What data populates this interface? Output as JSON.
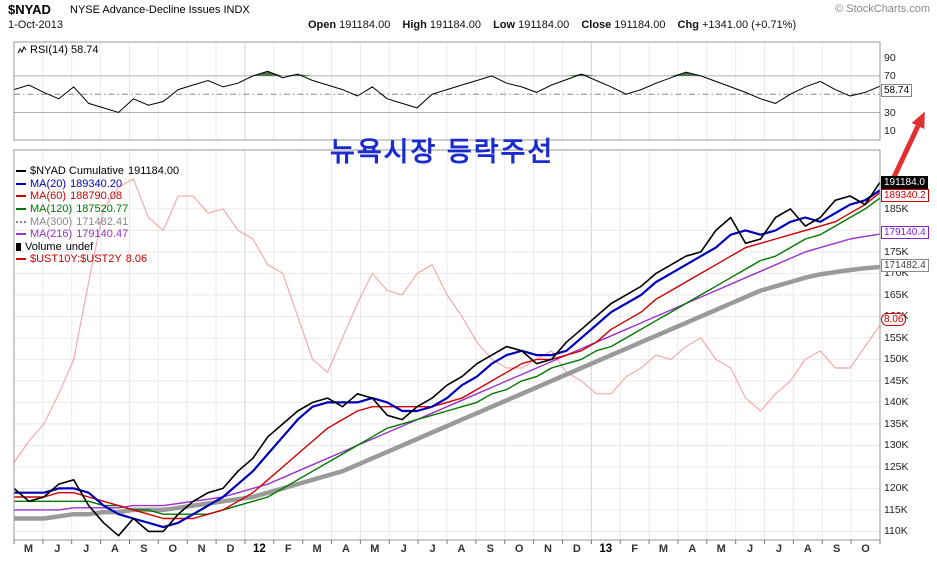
{
  "header": {
    "symbol": "$NYAD",
    "title": "NYSE Advance-Decline Issues  INDX",
    "copyright": "© StockCharts.com",
    "date": "1-Oct-2013",
    "ohlc": [
      {
        "label": "Open",
        "value": "191184.00"
      },
      {
        "label": "High",
        "value": "191184.00"
      },
      {
        "label": "Low",
        "value": "191184.00"
      },
      {
        "label": "Close",
        "value": "191184.00"
      },
      {
        "label": "Chg",
        "value": "+1341.00 (+0.71%)"
      }
    ]
  },
  "rsi_panel": {
    "label": "RSI(14) 58.74",
    "badge": "58.74"
  },
  "annotation": {
    "text": "뉴욕시장 등락주선",
    "color": "#1a2bd0"
  },
  "legend": [
    {
      "label": "$NYAD  Cumulative",
      "value": "191184.00",
      "color": "#000000"
    },
    {
      "label": "MA(20)",
      "value": "189340.20",
      "color": "#0000bb"
    },
    {
      "label": "MA(60)",
      "value": "188790.08",
      "color": "#cc0000"
    },
    {
      "label": "MA(120)",
      "value": "187520.77",
      "color": "#007700"
    },
    {
      "label": "MA(300)",
      "value": "171482.41",
      "color": "#888888"
    },
    {
      "label": "MA(216)",
      "value": "179140.47",
      "color": "#9933cc"
    },
    {
      "label": "Volume",
      "value": "undef",
      "color": "#000000"
    },
    {
      "label": "$UST10Y:$UST2Y",
      "value": "8.06",
      "color": "#cc0000"
    }
  ],
  "badges": [
    {
      "text": "58.74",
      "fg": "#000000",
      "bd": "#888888",
      "bg": "#ffffff",
      "shape": "rect"
    },
    {
      "text": "191184.0",
      "fg": "#ffffff",
      "bd": "#000000",
      "bg": "#000000",
      "shape": "rect"
    },
    {
      "text": "189340.2",
      "fg": "#cc0000",
      "bd": "#cc0000",
      "bg": "#ffffff",
      "shape": "rect"
    },
    {
      "text": "179140.4",
      "fg": "#8822cc",
      "bd": "#8822cc",
      "bg": "#ffffff",
      "shape": "rect"
    },
    {
      "text": "171482.4",
      "fg": "#444444",
      "bd": "#888888",
      "bg": "#ffffff",
      "shape": "rect"
    },
    {
      "text": "8.06",
      "fg": "#cc0000",
      "bd": "#cc0000",
      "bg": "#ffffff",
      "shape": "oval"
    }
  ],
  "chart_data": [
    {
      "type": "line",
      "panel": "indicator",
      "title": "RSI(14)",
      "last": 58.74,
      "ylim": [
        0,
        107
      ],
      "yticks": [
        90,
        70,
        50,
        30,
        10
      ],
      "overbought": 70,
      "oversold": 30,
      "series": [
        {
          "name": "RSI(14)",
          "color": "#000000",
          "width": 1,
          "values": [
            55,
            60,
            52,
            45,
            58,
            40,
            35,
            30,
            45,
            38,
            42,
            55,
            60,
            65,
            58,
            62,
            70,
            75,
            68,
            72,
            65,
            60,
            55,
            48,
            58,
            45,
            40,
            35,
            50,
            55,
            60,
            65,
            70,
            62,
            58,
            52,
            60,
            66,
            72,
            65,
            58,
            50,
            55,
            62,
            68,
            74,
            70,
            64,
            58,
            52,
            45,
            40,
            50,
            58,
            64,
            55,
            48,
            52,
            58.74
          ]
        }
      ]
    },
    {
      "type": "line",
      "panel": "main",
      "title": "$NYAD Cumulative",
      "units": "thousands",
      "ylim_thousands": [
        108,
        198.7
      ],
      "yticks_thousands": [
        110,
        115,
        120,
        125,
        130,
        135,
        140,
        145,
        150,
        155,
        160,
        165,
        170,
        175,
        180,
        185
      ],
      "x_labels": [
        "M",
        "J",
        "J",
        "A",
        "S",
        "O",
        "N",
        "D",
        "12",
        "F",
        "M",
        "A",
        "M",
        "J",
        "J",
        "A",
        "S",
        "O",
        "N",
        "D",
        "13",
        "F",
        "M",
        "A",
        "M",
        "J",
        "J",
        "A",
        "S",
        "O"
      ],
      "series": [
        {
          "name": "$NYAD Cumulative",
          "color": "#000000",
          "width": 1.6,
          "last": 191184.0,
          "values": [
            120,
            117,
            118,
            121,
            122,
            116,
            112,
            109,
            113,
            110,
            110,
            114,
            117,
            119,
            120,
            124,
            127,
            132,
            135,
            138,
            140,
            141,
            139,
            142,
            141,
            137,
            136,
            139,
            141,
            144,
            146,
            149,
            151,
            153,
            152,
            149,
            150,
            154,
            157,
            160,
            163,
            165,
            167,
            170,
            172,
            174,
            175,
            180,
            183,
            177,
            178,
            183,
            185,
            181,
            183,
            187,
            188,
            186,
            191.18
          ]
        },
        {
          "name": "MA(20)",
          "color": "#0000bb",
          "width": 2.2,
          "last": 189340.2,
          "values": [
            119,
            119,
            119,
            120,
            120,
            119,
            116,
            114,
            113,
            112,
            111,
            112,
            114,
            116,
            118,
            121,
            124,
            128,
            132,
            136,
            139,
            140,
            140,
            140,
            141,
            140,
            138,
            138,
            139,
            141,
            144,
            146,
            149,
            151,
            152,
            151,
            151,
            152,
            155,
            158,
            161,
            163,
            165,
            168,
            170,
            172,
            174,
            176,
            179,
            180,
            179,
            180,
            182,
            183,
            182,
            184,
            186,
            187,
            189.34
          ]
        },
        {
          "name": "MA(60)",
          "color": "#cc0000",
          "width": 1.4,
          "last": 188790.08,
          "values": [
            118,
            118,
            118,
            119,
            119,
            118,
            117,
            116,
            115,
            114,
            113,
            113,
            113,
            114,
            115,
            117,
            119,
            122,
            125,
            128,
            131,
            134,
            136,
            138,
            139,
            139,
            139,
            139,
            139,
            140,
            141,
            143,
            145,
            147,
            149,
            150,
            150,
            151,
            152,
            154,
            157,
            159,
            161,
            164,
            166,
            168,
            170,
            172,
            174,
            176,
            177,
            178,
            179,
            180,
            181,
            182,
            184,
            186,
            188.79
          ]
        },
        {
          "name": "MA(120)",
          "color": "#007700",
          "width": 1.4,
          "last": 187520.77,
          "values": [
            117,
            117,
            117,
            117,
            117,
            117,
            116,
            116,
            115,
            115,
            114,
            114,
            114,
            114,
            115,
            116,
            117,
            118,
            120,
            122,
            124,
            126,
            128,
            130,
            132,
            134,
            135,
            136,
            137,
            138,
            139,
            140,
            142,
            143,
            145,
            146,
            148,
            149,
            150,
            152,
            153,
            155,
            157,
            159,
            161,
            163,
            165,
            167,
            169,
            171,
            173,
            174,
            176,
            178,
            179,
            181,
            183,
            185,
            187.52
          ]
        },
        {
          "name": "MA(300)",
          "color": "#9a9a9a",
          "width": 4.5,
          "last": 171482.41,
          "values": [
            113,
            113,
            113,
            113.5,
            114,
            114,
            114.5,
            114.5,
            115,
            115,
            115,
            115.5,
            116,
            116.5,
            117,
            117.5,
            118,
            119,
            120,
            121,
            122,
            123,
            124,
            125.5,
            127,
            128.5,
            130,
            131.5,
            133,
            134.5,
            136,
            137.5,
            139,
            140.5,
            142,
            143.5,
            145,
            146.5,
            148,
            149.5,
            151,
            152.5,
            154,
            155.5,
            157,
            158.5,
            160,
            161.5,
            163,
            164.5,
            166,
            167,
            168,
            169,
            169.8,
            170.3,
            170.8,
            171.2,
            171.48
          ]
        },
        {
          "name": "MA(216)",
          "color": "#9933cc",
          "width": 1.4,
          "last": 179140.47,
          "values": [
            115,
            115,
            115,
            115,
            115.5,
            115.5,
            115.5,
            115.5,
            116,
            116,
            116,
            116.5,
            117,
            117.5,
            118,
            119,
            120,
            121,
            122.5,
            124,
            125.5,
            127,
            128.5,
            130,
            131.5,
            133,
            134.5,
            136,
            137.5,
            139,
            140.5,
            142,
            143.5,
            145,
            146.5,
            148,
            149.5,
            151,
            152.5,
            154,
            155.5,
            157,
            158.5,
            160,
            161.5,
            163,
            164.5,
            166,
            167.5,
            169,
            170.5,
            172,
            173.5,
            175,
            176,
            177,
            178,
            178.6,
            179.14
          ]
        },
        {
          "name": "$UST10Y:$UST2Y",
          "color": "#f2a3a3",
          "width": 1.2,
          "opacity": 0.9,
          "last": 8.06,
          "values": [
            126,
            131,
            135,
            142,
            150,
            168,
            185,
            190,
            192,
            183,
            180,
            188,
            188,
            184,
            185,
            180,
            178,
            172,
            170,
            160,
            150,
            147,
            155,
            163,
            170,
            166,
            165,
            170,
            172,
            165,
            160,
            154,
            150,
            148,
            148,
            150,
            152,
            147,
            145,
            142,
            142,
            146,
            148,
            151,
            150,
            153,
            155,
            150,
            148,
            141,
            138,
            142,
            145,
            150,
            152,
            148,
            148,
            153,
            158
          ]
        }
      ]
    }
  ]
}
